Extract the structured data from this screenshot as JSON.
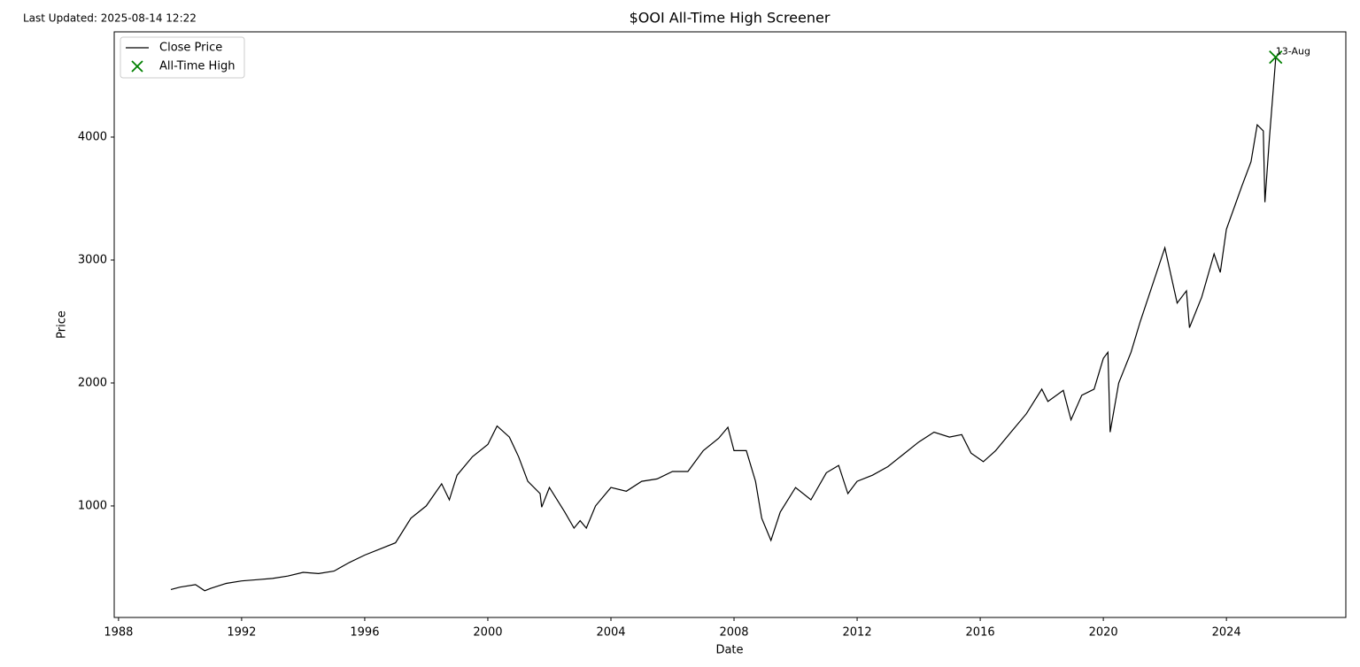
{
  "chart_data": {
    "type": "line",
    "title": "$OOI All-Time High Screener",
    "note": "Last Updated: 2025-08-14 12:22",
    "x_label": "Date",
    "y_label": "Price",
    "xlim": [
      1987.86,
      2027.88
    ],
    "ylim": [
      93,
      4856
    ],
    "xticks": [
      1988,
      1992,
      1996,
      2000,
      2004,
      2008,
      2012,
      2016,
      2020,
      2024
    ],
    "yticks": [
      1000,
      2000,
      3000,
      4000
    ],
    "grid": false,
    "legend": "upper left",
    "series": [
      {
        "name": "Close Price",
        "color": "#000000",
        "x": [
          1989.7,
          1990.0,
          1990.5,
          1990.8,
          1991.0,
          1991.5,
          1992.0,
          1992.5,
          1993.0,
          1993.5,
          1994.0,
          1994.5,
          1995.0,
          1995.5,
          1996.0,
          1996.5,
          1997.0,
          1997.5,
          1998.0,
          1998.5,
          1998.75,
          1999.0,
          1999.5,
          2000.0,
          2000.3,
          2000.7,
          2001.0,
          2001.3,
          2001.7,
          2001.75,
          2002.0,
          2002.5,
          2002.8,
          2003.0,
          2003.2,
          2003.5,
          2004.0,
          2004.5,
          2005.0,
          2005.5,
          2006.0,
          2006.5,
          2007.0,
          2007.5,
          2007.8,
          2008.0,
          2008.4,
          2008.7,
          2008.9,
          2009.2,
          2009.5,
          2010.0,
          2010.5,
          2011.0,
          2011.4,
          2011.7,
          2012.0,
          2012.5,
          2013.0,
          2013.5,
          2014.0,
          2014.5,
          2015.0,
          2015.4,
          2015.7,
          2016.1,
          2016.5,
          2017.0,
          2017.5,
          2018.0,
          2018.2,
          2018.7,
          2018.95,
          2019.3,
          2019.7,
          2020.0,
          2020.15,
          2020.22,
          2020.5,
          2020.9,
          2021.2,
          2021.6,
          2022.0,
          2022.4,
          2022.7,
          2022.8,
          2023.2,
          2023.6,
          2023.8,
          2024.0,
          2024.5,
          2024.8,
          2025.0,
          2025.2,
          2025.25,
          2025.4,
          2025.6
        ],
        "values": [
          320,
          340,
          360,
          310,
          330,
          370,
          390,
          400,
          410,
          430,
          460,
          450,
          470,
          540,
          600,
          650,
          700,
          900,
          1000,
          1180,
          1050,
          1250,
          1400,
          1500,
          1650,
          1560,
          1400,
          1200,
          1100,
          990,
          1150,
          950,
          820,
          880,
          820,
          1000,
          1150,
          1120,
          1200,
          1220,
          1280,
          1280,
          1450,
          1550,
          1640,
          1450,
          1450,
          1200,
          900,
          720,
          950,
          1150,
          1050,
          1270,
          1330,
          1100,
          1200,
          1250,
          1320,
          1420,
          1520,
          1600,
          1560,
          1580,
          1430,
          1360,
          1450,
          1600,
          1750,
          1950,
          1850,
          1940,
          1700,
          1900,
          1950,
          2200,
          2250,
          1600,
          2000,
          2250,
          2500,
          2800,
          3100,
          2650,
          2750,
          2450,
          2700,
          3050,
          2900,
          3250,
          3600,
          3800,
          4100,
          4050,
          3470,
          4000,
          4640
        ]
      },
      {
        "name": "All-Time High",
        "color": "#008000",
        "marker": "x",
        "x": [
          2025.6
        ],
        "values": [
          4650
        ],
        "annotation": "13-Aug"
      }
    ]
  }
}
